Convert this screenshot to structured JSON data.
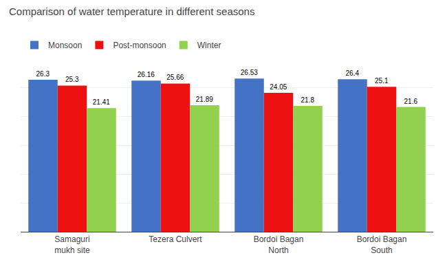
{
  "chart_data": {
    "type": "bar",
    "title": "Comparison of water temperature in different seasons",
    "categories": [
      "Samaguri\nmukh site",
      "Tezera Culvert",
      "Bordoi Bagan\nNorth",
      "Bordoi Bagan\nSouth"
    ],
    "series": [
      {
        "name": "Monsoon",
        "color": "#4472C4",
        "values": [
          26.3,
          26.16,
          26.53,
          26.4
        ]
      },
      {
        "name": "Post-monsoon",
        "color": "#EE1111",
        "values": [
          25.3,
          25.66,
          24.05,
          25.1
        ]
      },
      {
        "name": "Winter",
        "color": "#92D050",
        "values": [
          21.41,
          21.89,
          21.8,
          21.6
        ]
      }
    ],
    "ylim": [
      0,
      30
    ],
    "yticks": [
      0,
      5,
      10,
      15,
      20,
      25,
      30
    ],
    "grid": true,
    "legend": "top left",
    "data_labels": true,
    "tick_labels": "x"
  }
}
